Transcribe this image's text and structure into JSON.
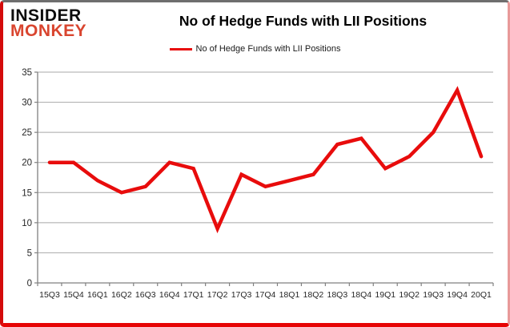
{
  "brand": {
    "line1": "INSIDER",
    "line2": "MONKEY"
  },
  "header": {
    "title": "No of Hedge Funds with LII Positions"
  },
  "legend": {
    "label": "No of Hedge Funds with LII Positions"
  },
  "colors": {
    "series_red": "#e80c0c",
    "gridline": "#a8a8a8",
    "axis": "#808080",
    "tick_label": "#262626",
    "brand_red": "#d9452f",
    "frame_red": "#d40b0b"
  },
  "chart_data": {
    "type": "line",
    "title": "No of Hedge Funds with LII Positions",
    "xlabel": "",
    "ylabel": "",
    "categories": [
      "15Q3",
      "15Q4",
      "16Q1",
      "16Q2",
      "16Q3",
      "16Q4",
      "17Q1",
      "17Q2",
      "17Q3",
      "17Q4",
      "18Q1",
      "18Q2",
      "18Q3",
      "18Q4",
      "19Q1",
      "19Q2",
      "19Q3",
      "19Q4",
      "20Q1"
    ],
    "series": [
      {
        "name": "No of Hedge Funds with LII Positions",
        "color": "#e80c0c",
        "values": [
          20,
          20,
          17,
          15,
          16,
          20,
          19,
          9,
          18,
          16,
          17,
          18,
          23,
          24,
          19,
          21,
          25,
          32,
          21
        ]
      }
    ],
    "ylim": [
      0,
      35
    ],
    "yticks": [
      0,
      5,
      10,
      15,
      20,
      25,
      30,
      35
    ],
    "grid": true,
    "legend_position": "top-center"
  }
}
